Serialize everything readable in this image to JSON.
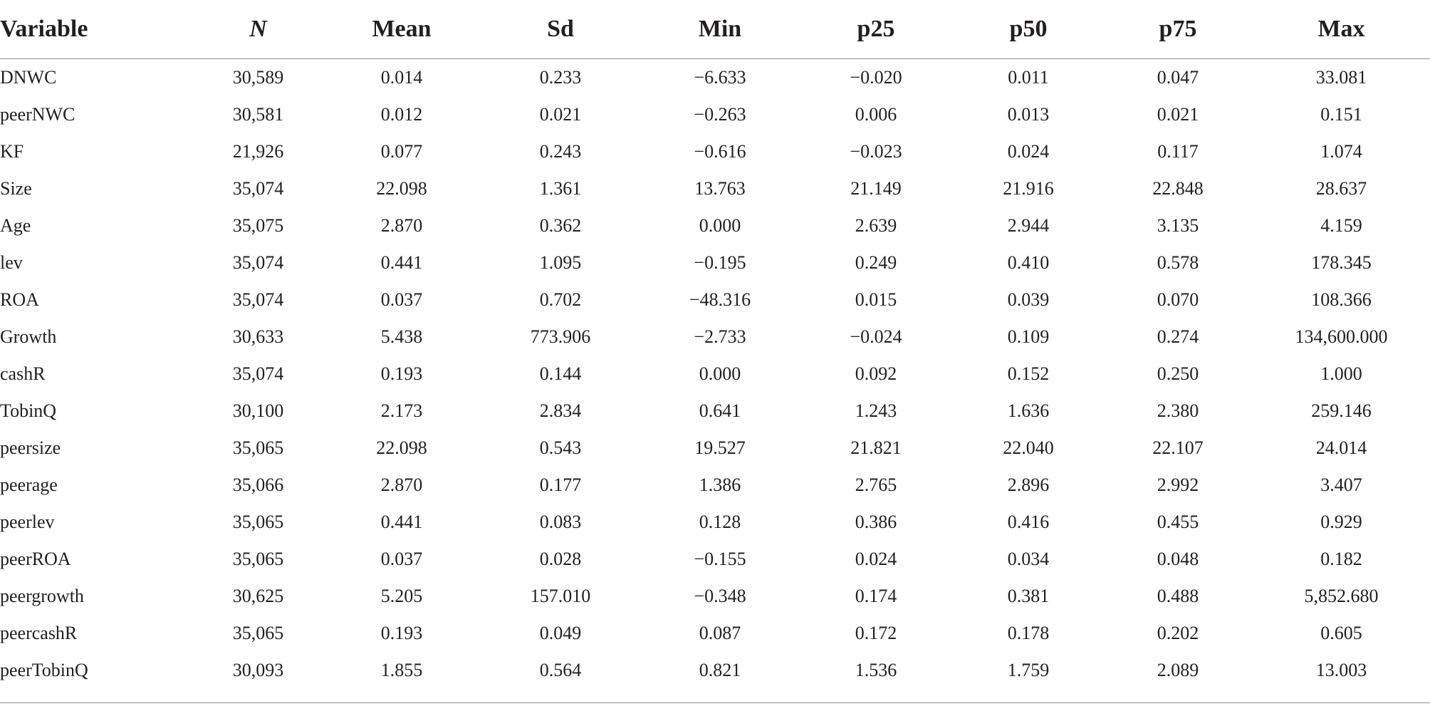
{
  "table": {
    "headers": [
      "Variable",
      "N",
      "Mean",
      "Sd",
      "Min",
      "p25",
      "p50",
      "p75",
      "Max"
    ],
    "rows": [
      [
        "DNWC",
        "30,589",
        "0.014",
        "0.233",
        "−6.633",
        "−0.020",
        "0.011",
        "0.047",
        "33.081"
      ],
      [
        "peerNWC",
        "30,581",
        "0.012",
        "0.021",
        "−0.263",
        "0.006",
        "0.013",
        "0.021",
        "0.151"
      ],
      [
        "KF",
        "21,926",
        "0.077",
        "0.243",
        "−0.616",
        "−0.023",
        "0.024",
        "0.117",
        "1.074"
      ],
      [
        "Size",
        "35,074",
        "22.098",
        "1.361",
        "13.763",
        "21.149",
        "21.916",
        "22.848",
        "28.637"
      ],
      [
        "Age",
        "35,075",
        "2.870",
        "0.362",
        "0.000",
        "2.639",
        "2.944",
        "3.135",
        "4.159"
      ],
      [
        "lev",
        "35,074",
        "0.441",
        "1.095",
        "−0.195",
        "0.249",
        "0.410",
        "0.578",
        "178.345"
      ],
      [
        "ROA",
        "35,074",
        "0.037",
        "0.702",
        "−48.316",
        "0.015",
        "0.039",
        "0.070",
        "108.366"
      ],
      [
        "Growth",
        "30,633",
        "5.438",
        "773.906",
        "−2.733",
        "−0.024",
        "0.109",
        "0.274",
        "134,600.000"
      ],
      [
        "cashR",
        "35,074",
        "0.193",
        "0.144",
        "0.000",
        "0.092",
        "0.152",
        "0.250",
        "1.000"
      ],
      [
        "TobinQ",
        "30,100",
        "2.173",
        "2.834",
        "0.641",
        "1.243",
        "1.636",
        "2.380",
        "259.146"
      ],
      [
        "peersize",
        "35,065",
        "22.098",
        "0.543",
        "19.527",
        "21.821",
        "22.040",
        "22.107",
        "24.014"
      ],
      [
        "peerage",
        "35,066",
        "2.870",
        "0.177",
        "1.386",
        "2.765",
        "2.896",
        "2.992",
        "3.407"
      ],
      [
        "peerlev",
        "35,065",
        "0.441",
        "0.083",
        "0.128",
        "0.386",
        "0.416",
        "0.455",
        "0.929"
      ],
      [
        "peerROA",
        "35,065",
        "0.037",
        "0.028",
        "−0.155",
        "0.024",
        "0.034",
        "0.048",
        "0.182"
      ],
      [
        "peergrowth",
        "30,625",
        "5.205",
        "157.010",
        "−0.348",
        "0.174",
        "0.381",
        "0.488",
        "5,852.680"
      ],
      [
        "peercashR",
        "35,065",
        "0.193",
        "0.049",
        "0.087",
        "0.172",
        "0.178",
        "0.202",
        "0.605"
      ],
      [
        "peerTobinQ",
        "30,093",
        "1.855",
        "0.564",
        "0.821",
        "1.536",
        "1.759",
        "2.089",
        "13.003"
      ]
    ]
  }
}
